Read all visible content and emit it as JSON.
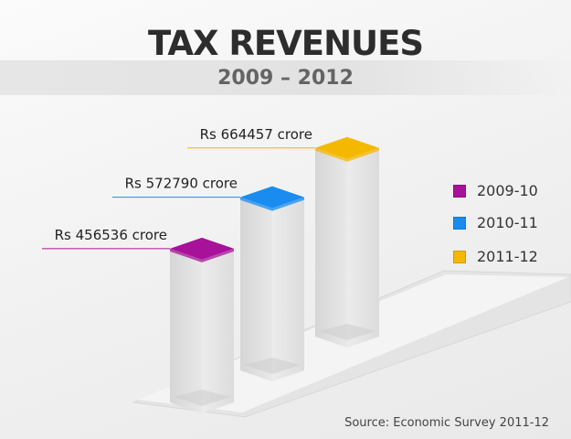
{
  "chart_data": {
    "type": "bar",
    "title": "TAX REVENUES",
    "subtitle": "2009 – 2012",
    "categories": [
      "2009-10",
      "2010-11",
      "2011-12"
    ],
    "values": [
      456536,
      572790,
      664457
    ],
    "data_labels": [
      "Rs 456536 crore",
      "Rs 572790 crore",
      "Rs 664457 crore"
    ],
    "unit": "Rs crore",
    "colors": [
      "#a8119a",
      "#1a8cf0",
      "#f5b800"
    ],
    "legend": {
      "placement": "right",
      "entries": [
        "2009-10",
        "2010-11",
        "2011-12"
      ]
    },
    "source": "Source: Economic Survey 2011-12",
    "grid": false,
    "style": "3d-columns"
  }
}
